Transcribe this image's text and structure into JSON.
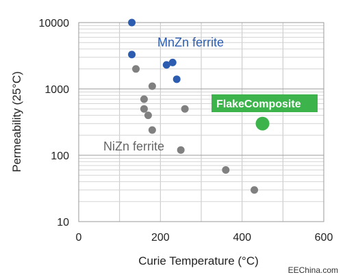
{
  "chart_data": {
    "type": "scatter",
    "title": "",
    "xlabel": "Curie Temperature (°C)",
    "ylabel": "Permeability (25°C)",
    "xlim": [
      0,
      600
    ],
    "ylim": [
      10,
      10000
    ],
    "yscale": "log",
    "x_ticks": [
      0,
      200,
      400,
      600
    ],
    "y_ticks": [
      10,
      100,
      1000,
      10000
    ],
    "x_tick_labels": [
      "0",
      "200",
      "400",
      "600"
    ],
    "y_tick_labels": [
      "10",
      "100",
      "1000",
      "10000"
    ],
    "grid": true,
    "series": [
      {
        "name": "MnZn ferrite",
        "color": "#2b5cb0",
        "points": [
          {
            "x": 130,
            "y": 10000
          },
          {
            "x": 130,
            "y": 3300
          },
          {
            "x": 215,
            "y": 2300
          },
          {
            "x": 230,
            "y": 2500
          },
          {
            "x": 240,
            "y": 1400
          }
        ]
      },
      {
        "name": "NiZn ferrite",
        "color": "#808080",
        "points": [
          {
            "x": 140,
            "y": 2000
          },
          {
            "x": 180,
            "y": 1100
          },
          {
            "x": 160,
            "y": 700
          },
          {
            "x": 160,
            "y": 500
          },
          {
            "x": 170,
            "y": 400
          },
          {
            "x": 260,
            "y": 500
          },
          {
            "x": 180,
            "y": 240
          },
          {
            "x": 250,
            "y": 120
          },
          {
            "x": 360,
            "y": 60
          },
          {
            "x": 430,
            "y": 30
          }
        ]
      },
      {
        "name": "FlakeComposite",
        "color": "#3cb44b",
        "points": [
          {
            "x": 450,
            "y": 300
          }
        ]
      }
    ],
    "annotations": [
      {
        "text": "MnZn ferrite",
        "color": "#2b5cb0"
      },
      {
        "text": "NiZn ferrite",
        "color": "#666666"
      },
      {
        "text": "FlakeComposite",
        "color": "#ffffff",
        "background": "#3cb44b"
      }
    ]
  },
  "watermark": "EEChina.com"
}
